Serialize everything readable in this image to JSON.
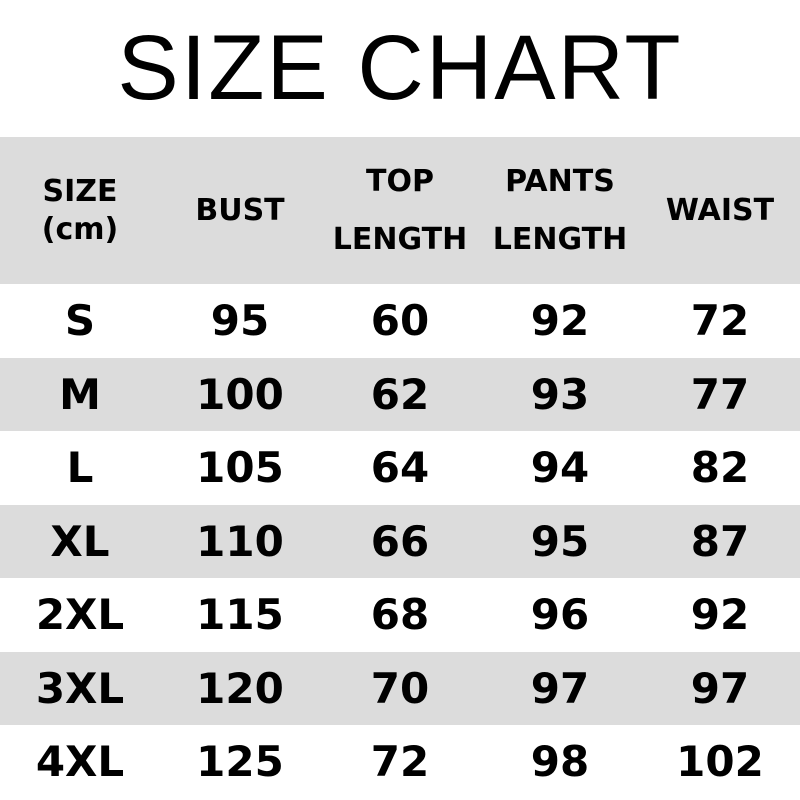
{
  "title": "SIZE CHART",
  "headers": [
    {
      "line1": "SIZE",
      "line2": "(cm)"
    },
    {
      "line1": "BUST"
    },
    {
      "line1": "TOP",
      "line2": "LENGTH"
    },
    {
      "line1": "PANTS",
      "line2": "LENGTH"
    },
    {
      "line1": "WAIST"
    }
  ],
  "rows": [
    [
      "S",
      "95",
      "60",
      "92",
      "72"
    ],
    [
      "M",
      "100",
      "62",
      "93",
      "77"
    ],
    [
      "L",
      "105",
      "64",
      "94",
      "82"
    ],
    [
      "XL",
      "110",
      "66",
      "95",
      "87"
    ],
    [
      "2XL",
      "115",
      "68",
      "96",
      "92"
    ],
    [
      "3XL",
      "120",
      "70",
      "97",
      "97"
    ],
    [
      "4XL",
      "125",
      "72",
      "98",
      "102"
    ]
  ],
  "colors": {
    "stripe": "#dcdcdc",
    "text": "#000000"
  }
}
